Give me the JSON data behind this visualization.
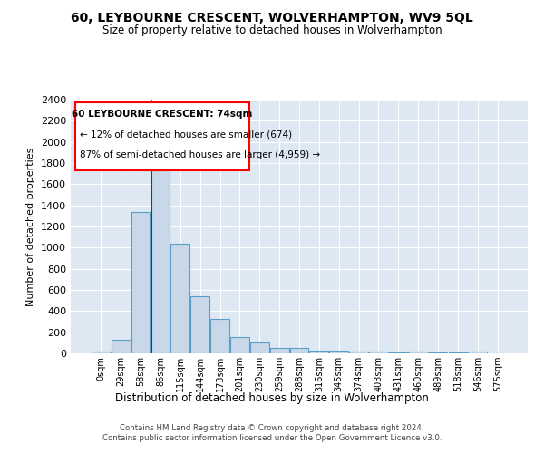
{
  "title": "60, LEYBOURNE CRESCENT, WOLVERHAMPTON, WV9 5QL",
  "subtitle": "Size of property relative to detached houses in Wolverhampton",
  "xlabel": "Distribution of detached houses by size in Wolverhampton",
  "ylabel": "Number of detached properties",
  "footer_line1": "Contains HM Land Registry data © Crown copyright and database right 2024.",
  "footer_line2": "Contains public sector information licensed under the Open Government Licence v3.0.",
  "annotation_title": "60 LEYBOURNE CRESCENT: 74sqm",
  "annotation_line1": "← 12% of detached houses are smaller (674)",
  "annotation_line2": "87% of semi-detached houses are larger (4,959) →",
  "bar_labels": [
    "0sqm",
    "29sqm",
    "58sqm",
    "86sqm",
    "115sqm",
    "144sqm",
    "173sqm",
    "201sqm",
    "230sqm",
    "259sqm",
    "288sqm",
    "316sqm",
    "345sqm",
    "374sqm",
    "403sqm",
    "431sqm",
    "460sqm",
    "489sqm",
    "518sqm",
    "546sqm",
    "575sqm"
  ],
  "bar_heights": [
    20,
    125,
    1340,
    1890,
    1035,
    540,
    330,
    155,
    105,
    55,
    55,
    30,
    25,
    15,
    15,
    5,
    15,
    5,
    5,
    20,
    0
  ],
  "bar_color": "#c8d8e8",
  "bar_edge_color": "#5a9ec9",
  "background_color": "#dde8f3",
  "grid_color": "#ffffff",
  "red_line_x": 2.55,
  "ylim": [
    0,
    2400
  ],
  "yticks": [
    0,
    200,
    400,
    600,
    800,
    1000,
    1200,
    1400,
    1600,
    1800,
    2000,
    2200,
    2400
  ]
}
